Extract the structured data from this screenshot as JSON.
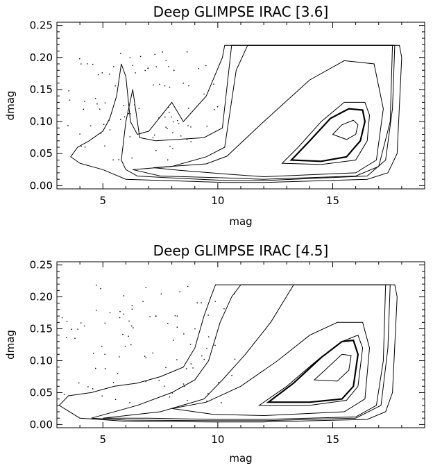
{
  "chart_data": [
    {
      "type": "contour",
      "title": "Deep GLIMPSE IRAC [3.6]",
      "xlabel": "mag",
      "ylabel": "dmag",
      "xlim": [
        3,
        19
      ],
      "ylim": [
        -0.005,
        0.255
      ],
      "xticks": [
        5,
        10,
        15
      ],
      "xtick_labels": [
        "5",
        "10",
        "15"
      ],
      "yticks": [
        0.0,
        0.05,
        0.1,
        0.15,
        0.2,
        0.25
      ],
      "ytick_labels": [
        "0.00",
        "0.05",
        "0.10",
        "0.15",
        "0.20",
        "0.25"
      ],
      "peak": {
        "mag": 15.8,
        "dmag": 0.095
      },
      "contours": [
        {
          "level": "lowest",
          "bold": false,
          "points": [
            [
              3.6,
              0.045
            ],
            [
              3.9,
              0.06
            ],
            [
              4.4,
              0.07
            ],
            [
              5.0,
              0.085
            ],
            [
              5.3,
              0.105
            ],
            [
              5.6,
              0.14
            ],
            [
              5.8,
              0.19
            ],
            [
              6.0,
              0.17
            ],
            [
              6.2,
              0.1
            ],
            [
              6.5,
              0.08
            ],
            [
              7.0,
              0.085
            ],
            [
              8.0,
              0.13
            ],
            [
              8.5,
              0.1
            ],
            [
              9.5,
              0.14
            ],
            [
              10.2,
              0.2
            ],
            [
              10.3,
              0.219
            ],
            [
              17.9,
              0.219
            ],
            [
              18.0,
              0.2
            ],
            [
              17.8,
              0.05
            ],
            [
              17.4,
              0.02
            ],
            [
              16.5,
              0.01
            ],
            [
              12.0,
              0.005
            ],
            [
              10.3,
              0.005
            ],
            [
              6.0,
              0.01
            ],
            [
              5.0,
              0.025
            ],
            [
              4.0,
              0.035
            ],
            [
              3.6,
              0.045
            ]
          ]
        },
        {
          "level": "low",
          "bold": false,
          "points": [
            [
              5.8,
              0.04
            ],
            [
              6.0,
              0.1
            ],
            [
              6.3,
              0.15
            ],
            [
              6.6,
              0.075
            ],
            [
              7.3,
              0.07
            ],
            [
              9.4,
              0.075
            ],
            [
              10.2,
              0.09
            ],
            [
              10.6,
              0.219
            ],
            [
              17.7,
              0.219
            ],
            [
              17.6,
              0.12
            ],
            [
              17.3,
              0.04
            ],
            [
              16.5,
              0.015
            ],
            [
              12.0,
              0.008
            ],
            [
              10.4,
              0.008
            ],
            [
              8.0,
              0.012
            ],
            [
              6.5,
              0.015
            ],
            [
              6.0,
              0.025
            ],
            [
              5.8,
              0.04
            ]
          ]
        },
        {
          "level": "mid",
          "bold": false,
          "points": [
            [
              6.3,
              0.025
            ],
            [
              8.0,
              0.03
            ],
            [
              9.5,
              0.045
            ],
            [
              10.3,
              0.06
            ],
            [
              10.8,
              0.18
            ],
            [
              11.3,
              0.219
            ],
            [
              17.6,
              0.219
            ],
            [
              17.5,
              0.1
            ],
            [
              17.0,
              0.03
            ],
            [
              16.0,
              0.015
            ],
            [
              12.0,
              0.01
            ],
            [
              10.4,
              0.012
            ],
            [
              7.5,
              0.015
            ],
            [
              6.3,
              0.025
            ]
          ]
        },
        {
          "level": "mid2",
          "bold": false,
          "points": [
            [
              7.2,
              0.028
            ],
            [
              9.5,
              0.034
            ],
            [
              10.4,
              0.046
            ],
            [
              12.0,
              0.1
            ],
            [
              14.0,
              0.165
            ],
            [
              15.5,
              0.195
            ],
            [
              16.8,
              0.19
            ],
            [
              17.2,
              0.12
            ],
            [
              16.9,
              0.04
            ],
            [
              16.0,
              0.02
            ],
            [
              12.0,
              0.014
            ],
            [
              10.4,
              0.018
            ],
            [
              8.0,
              0.025
            ],
            [
              7.2,
              0.028
            ]
          ]
        },
        {
          "level": "high",
          "bold": false,
          "points": [
            [
              12.8,
              0.035
            ],
            [
              13.5,
              0.06
            ],
            [
              14.5,
              0.1
            ],
            [
              15.5,
              0.13
            ],
            [
              16.4,
              0.13
            ],
            [
              16.6,
              0.11
            ],
            [
              16.5,
              0.07
            ],
            [
              16.0,
              0.04
            ],
            [
              14.5,
              0.033
            ],
            [
              12.8,
              0.035
            ]
          ]
        },
        {
          "level": "higher",
          "bold": true,
          "points": [
            [
              13.2,
              0.04
            ],
            [
              14.0,
              0.07
            ],
            [
              14.9,
              0.105
            ],
            [
              15.7,
              0.12
            ],
            [
              16.3,
              0.118
            ],
            [
              16.4,
              0.1
            ],
            [
              16.2,
              0.07
            ],
            [
              15.6,
              0.045
            ],
            [
              14.5,
              0.038
            ],
            [
              13.2,
              0.04
            ]
          ]
        },
        {
          "level": "peak",
          "bold": false,
          "points": [
            [
              15.0,
              0.08
            ],
            [
              15.4,
              0.095
            ],
            [
              15.9,
              0.102
            ],
            [
              16.1,
              0.095
            ],
            [
              16.0,
              0.08
            ],
            [
              15.6,
              0.072
            ],
            [
              15.0,
              0.08
            ]
          ]
        }
      ]
    },
    {
      "type": "contour",
      "title": "Deep GLIMPSE IRAC [4.5]",
      "xlabel": "mag",
      "ylabel": "dmag",
      "xlim": [
        3,
        19
      ],
      "ylim": [
        -0.005,
        0.255
      ],
      "xticks": [
        5,
        10,
        15
      ],
      "xtick_labels": [
        "5",
        "10",
        "15"
      ],
      "yticks": [
        0.0,
        0.05,
        0.1,
        0.15,
        0.2,
        0.25
      ],
      "ytick_labels": [
        "0.00",
        "0.05",
        "0.10",
        "0.15",
        "0.20",
        "0.25"
      ],
      "peak": {
        "mag": 15.0,
        "dmag": 0.085
      },
      "contours": [
        {
          "level": "lowest",
          "bold": false,
          "points": [
            [
              3.1,
              0.03
            ],
            [
              3.5,
              0.045
            ],
            [
              4.5,
              0.05
            ],
            [
              5.5,
              0.06
            ],
            [
              6.5,
              0.065
            ],
            [
              7.5,
              0.075
            ],
            [
              8.5,
              0.09
            ],
            [
              9.0,
              0.12
            ],
            [
              9.4,
              0.17
            ],
            [
              9.7,
              0.2
            ],
            [
              9.9,
              0.219
            ],
            [
              17.7,
              0.219
            ],
            [
              17.8,
              0.2
            ],
            [
              17.6,
              0.05
            ],
            [
              17.3,
              0.02
            ],
            [
              16.5,
              0.008
            ],
            [
              12.0,
              0.004
            ],
            [
              9.8,
              0.004
            ],
            [
              6.0,
              0.005
            ],
            [
              4.0,
              0.01
            ],
            [
              3.1,
              0.03
            ]
          ]
        },
        {
          "level": "low",
          "bold": false,
          "points": [
            [
              4.5,
              0.01
            ],
            [
              6.5,
              0.03
            ],
            [
              8.0,
              0.05
            ],
            [
              9.0,
              0.07
            ],
            [
              9.6,
              0.1
            ],
            [
              10.1,
              0.16
            ],
            [
              10.6,
              0.2
            ],
            [
              11.0,
              0.219
            ],
            [
              17.5,
              0.219
            ],
            [
              17.4,
              0.12
            ],
            [
              17.1,
              0.03
            ],
            [
              16.0,
              0.01
            ],
            [
              12.0,
              0.006
            ],
            [
              9.7,
              0.006
            ],
            [
              6.0,
              0.007
            ],
            [
              4.5,
              0.01
            ]
          ]
        },
        {
          "level": "mid",
          "bold": false,
          "points": [
            [
              5.0,
              0.01
            ],
            [
              7.5,
              0.02
            ],
            [
              9.4,
              0.04
            ],
            [
              10.2,
              0.07
            ],
            [
              11.2,
              0.11
            ],
            [
              12.3,
              0.16
            ],
            [
              13.3,
              0.219
            ],
            [
              17.3,
              0.219
            ],
            [
              17.2,
              0.1
            ],
            [
              16.9,
              0.03
            ],
            [
              16.0,
              0.012
            ],
            [
              12.0,
              0.008
            ],
            [
              9.8,
              0.008
            ],
            [
              7.0,
              0.01
            ],
            [
              5.0,
              0.01
            ]
          ]
        },
        {
          "level": "mid2",
          "bold": false,
          "points": [
            [
              8.0,
              0.025
            ],
            [
              9.5,
              0.035
            ],
            [
              11.0,
              0.06
            ],
            [
              12.6,
              0.1
            ],
            [
              14.0,
              0.14
            ],
            [
              15.2,
              0.16
            ],
            [
              16.3,
              0.16
            ],
            [
              16.6,
              0.12
            ],
            [
              16.4,
              0.04
            ],
            [
              15.5,
              0.02
            ],
            [
              12.0,
              0.014
            ],
            [
              9.8,
              0.016
            ],
            [
              8.0,
              0.025
            ]
          ]
        },
        {
          "level": "high",
          "bold": false,
          "points": [
            [
              11.8,
              0.03
            ],
            [
              13.0,
              0.06
            ],
            [
              14.3,
              0.1
            ],
            [
              15.4,
              0.13
            ],
            [
              16.1,
              0.14
            ],
            [
              16.3,
              0.12
            ],
            [
              16.1,
              0.06
            ],
            [
              15.6,
              0.038
            ],
            [
              14.0,
              0.03
            ],
            [
              11.8,
              0.03
            ]
          ]
        },
        {
          "level": "higher",
          "bold": true,
          "points": [
            [
              12.2,
              0.035
            ],
            [
              13.3,
              0.065
            ],
            [
              14.5,
              0.105
            ],
            [
              15.4,
              0.13
            ],
            [
              15.9,
              0.132
            ],
            [
              16.1,
              0.11
            ],
            [
              15.9,
              0.06
            ],
            [
              15.4,
              0.04
            ],
            [
              14.0,
              0.035
            ],
            [
              12.2,
              0.035
            ]
          ]
        },
        {
          "level": "peak",
          "bold": false,
          "points": [
            [
              14.2,
              0.07
            ],
            [
              14.8,
              0.09
            ],
            [
              15.4,
              0.11
            ],
            [
              15.8,
              0.108
            ],
            [
              15.7,
              0.085
            ],
            [
              15.2,
              0.068
            ],
            [
              14.2,
              0.07
            ]
          ]
        }
      ]
    }
  ]
}
